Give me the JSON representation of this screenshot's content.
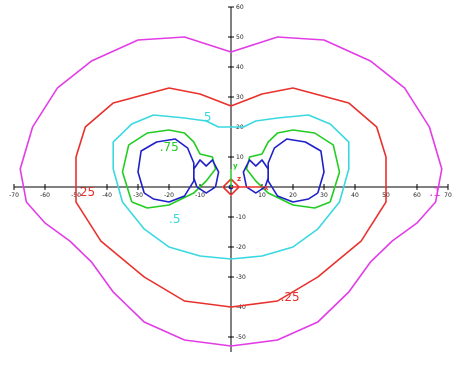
{
  "chart_data": {
    "type": "line",
    "xlim": [
      -70,
      70
    ],
    "ylim": [
      -55,
      60
    ],
    "grid": false,
    "x_ticks": [
      -70,
      -60,
      -50,
      -40,
      -30,
      -20,
      -10,
      10,
      20,
      30,
      40,
      50,
      60,
      70
    ],
    "y_ticks": [
      -50,
      -40,
      -30,
      -20,
      -10,
      10,
      20,
      30,
      40,
      50,
      60
    ],
    "colors": {
      "axis": "#000000",
      "level_1": "#e23ce6",
      "level_25": "#e8302c",
      "level_5": "#3ad8e0",
      "level_75": "#22cc22",
      "level_inner": "#2020c8"
    },
    "contours": [
      {
        "level": ".1",
        "color": "#e23ce6",
        "points": [
          [
            -56,
            33
          ],
          [
            -45,
            42
          ],
          [
            -30,
            49
          ],
          [
            -15,
            50
          ],
          [
            0,
            45
          ],
          [
            15,
            50
          ],
          [
            30,
            49
          ],
          [
            45,
            42
          ],
          [
            56,
            33
          ],
          [
            64,
            20
          ],
          [
            68,
            6
          ],
          [
            66,
            -5
          ],
          [
            60,
            -12
          ],
          [
            52,
            -18
          ],
          [
            45,
            -25
          ],
          [
            38,
            -35
          ],
          [
            28,
            -45
          ],
          [
            15,
            -51
          ],
          [
            0,
            -53
          ],
          [
            -15,
            -51
          ],
          [
            -28,
            -45
          ],
          [
            -38,
            -35
          ],
          [
            -45,
            -25
          ],
          [
            -52,
            -18
          ],
          [
            -60,
            -12
          ],
          [
            -66,
            -5
          ],
          [
            -68,
            6
          ],
          [
            -64,
            20
          ],
          [
            -56,
            33
          ]
        ]
      },
      {
        "level": ".25",
        "color": "#e8302c",
        "points": [
          [
            -50,
            10
          ],
          [
            -47,
            20
          ],
          [
            -38,
            28
          ],
          [
            -20,
            33
          ],
          [
            -10,
            31
          ],
          [
            0,
            27
          ],
          [
            10,
            31
          ],
          [
            20,
            33
          ],
          [
            38,
            28
          ],
          [
            47,
            20
          ],
          [
            50,
            10
          ],
          [
            50,
            -5
          ],
          [
            42,
            -18
          ],
          [
            28,
            -30
          ],
          [
            15,
            -38
          ],
          [
            0,
            -40
          ],
          [
            -15,
            -38
          ],
          [
            -28,
            -30
          ],
          [
            -42,
            -18
          ],
          [
            -50,
            -5
          ],
          [
            -50,
            10
          ]
        ]
      },
      {
        "level": ".5",
        "color": "#3ad8e0",
        "points": [
          [
            -38,
            6
          ],
          [
            -38,
            15
          ],
          [
            -32,
            21
          ],
          [
            -25,
            24
          ],
          [
            -15,
            23
          ],
          [
            -8,
            22
          ],
          [
            -4,
            20
          ],
          [
            4,
            20
          ],
          [
            8,
            22
          ],
          [
            15,
            23
          ],
          [
            25,
            24
          ],
          [
            32,
            21
          ],
          [
            38,
            15
          ],
          [
            38,
            6
          ],
          [
            35,
            -5
          ],
          [
            28,
            -14
          ],
          [
            20,
            -20
          ],
          [
            10,
            -23
          ],
          [
            0,
            -24
          ],
          [
            -10,
            -23
          ],
          [
            -20,
            -20
          ],
          [
            -28,
            -14
          ],
          [
            -35,
            -5
          ],
          [
            -38,
            6
          ]
        ]
      },
      {
        "level": ".75",
        "color": "#22cc22",
        "points": [
          [
            -32,
            -5
          ],
          [
            -35,
            5
          ],
          [
            -33,
            14
          ],
          [
            -27,
            18
          ],
          [
            -20,
            19
          ],
          [
            -15,
            18
          ],
          [
            -12,
            15
          ],
          [
            -10,
            11
          ],
          [
            -6,
            10
          ],
          [
            -5,
            6
          ],
          [
            -8,
            2
          ],
          [
            -12,
            -2
          ],
          [
            -20,
            -6
          ],
          [
            -27,
            -7
          ],
          [
            -32,
            -5
          ]
        ]
      },
      {
        "level": ".75",
        "color": "#22cc22",
        "points": [
          [
            32,
            -5
          ],
          [
            35,
            5
          ],
          [
            33,
            14
          ],
          [
            27,
            18
          ],
          [
            20,
            19
          ],
          [
            15,
            18
          ],
          [
            12,
            15
          ],
          [
            10,
            11
          ],
          [
            6,
            10
          ],
          [
            5,
            6
          ],
          [
            8,
            2
          ],
          [
            12,
            -2
          ],
          [
            20,
            -6
          ],
          [
            27,
            -7
          ],
          [
            32,
            -5
          ]
        ]
      },
      {
        "level": "inner",
        "color": "#2020c8",
        "points": [
          [
            -28,
            -2
          ],
          [
            -30,
            5
          ],
          [
            -29,
            12
          ],
          [
            -24,
            15
          ],
          [
            -18,
            16
          ],
          [
            -14,
            13
          ],
          [
            -12,
            8
          ],
          [
            -12,
            2
          ],
          [
            -15,
            -3
          ],
          [
            -20,
            -5
          ],
          [
            -25,
            -4
          ],
          [
            -28,
            -2
          ]
        ]
      },
      {
        "level": "inner",
        "color": "#2020c8",
        "points": [
          [
            28,
            -2
          ],
          [
            30,
            5
          ],
          [
            29,
            12
          ],
          [
            24,
            15
          ],
          [
            18,
            16
          ],
          [
            14,
            13
          ],
          [
            12,
            8
          ],
          [
            12,
            2
          ],
          [
            15,
            -3
          ],
          [
            20,
            -5
          ],
          [
            25,
            -4
          ],
          [
            28,
            -2
          ]
        ]
      },
      {
        "level": "inner",
        "color": "#2020c8",
        "points": [
          [
            -12,
            6
          ],
          [
            -10,
            9
          ],
          [
            -8,
            7
          ],
          [
            -6,
            9
          ],
          [
            -4,
            5
          ],
          [
            -5,
            0
          ],
          [
            -8,
            -2
          ],
          [
            -11,
            0
          ],
          [
            -12,
            3
          ],
          [
            -12,
            6
          ]
        ]
      },
      {
        "level": "inner",
        "color": "#2020c8",
        "points": [
          [
            12,
            6
          ],
          [
            10,
            9
          ],
          [
            8,
            7
          ],
          [
            6,
            9
          ],
          [
            4,
            5
          ],
          [
            5,
            0
          ],
          [
            8,
            -2
          ],
          [
            11,
            0
          ],
          [
            12,
            3
          ],
          [
            12,
            6
          ]
        ]
      }
    ],
    "labels": [
      {
        "text": ".1",
        "color": "#e23ce6",
        "x": 64,
        "y": -3
      },
      {
        "text": ".25",
        "color": "#e8302c",
        "x": -50,
        "y": -3
      },
      {
        "text": ".25",
        "color": "#e8302c",
        "x": 16,
        "y": -38
      },
      {
        "text": ".5",
        "color": "#3ad8e0",
        "x": -10,
        "y": 22
      },
      {
        "text": ".5",
        "color": "#3ad8e0",
        "x": -20,
        "y": -12
      },
      {
        "text": ".75",
        "color": "#22cc22",
        "x": -23,
        "y": 12
      }
    ],
    "origin_markers": [
      {
        "name": "x-letter",
        "text": "x",
        "color": "#e8302c"
      },
      {
        "name": "y-letter",
        "text": "y",
        "color": "#22cc22"
      },
      {
        "name": "z-letter",
        "text": "z",
        "color": "#e8302c"
      }
    ]
  }
}
